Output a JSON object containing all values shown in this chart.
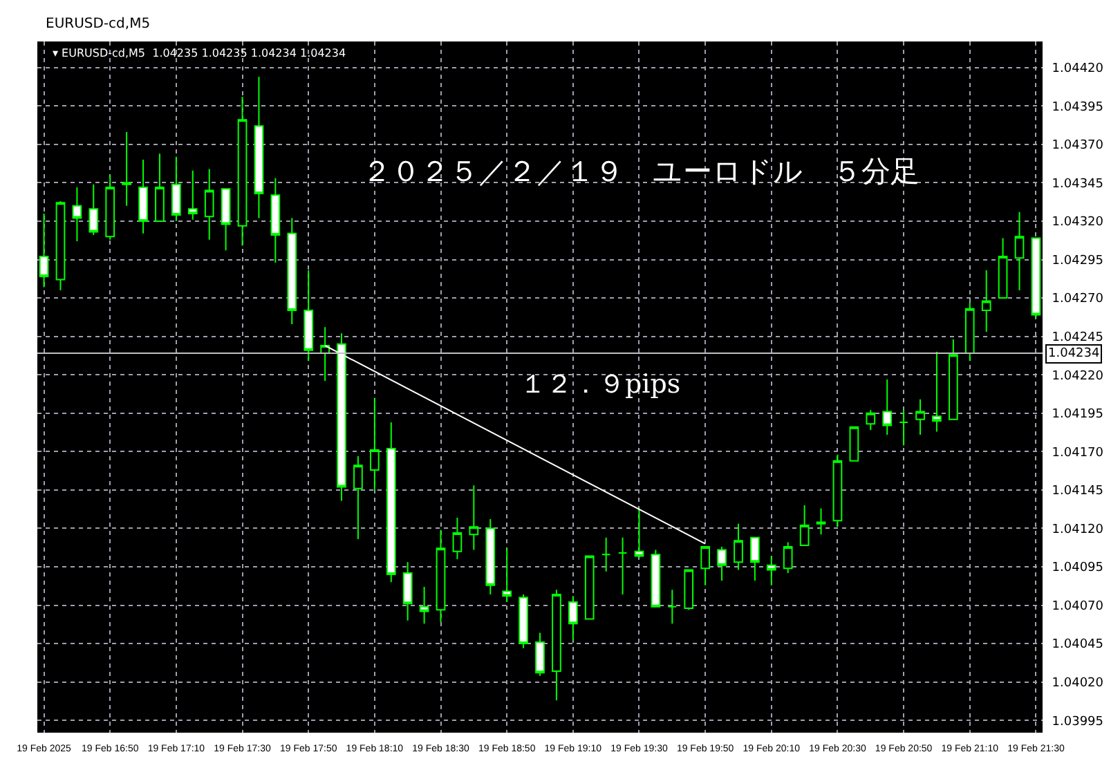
{
  "chart_data": {
    "type": "candlestick",
    "title": "EURUSD-cd,M5",
    "subtitle": "▾ EURUSD-cd,M5  1.04235 1.04235 1.04234 1.04234",
    "annotations": [
      "２０２５／２／１９　ユーロドル　５分足",
      "１２．９pips"
    ],
    "xlim": [
      "2025-02-19T16:28",
      "2025-02-19T21:32"
    ],
    "xticks": [
      {
        "value": "2025-02-19T16:30",
        "label": "19 Feb 2025"
      },
      {
        "value": "2025-02-19T16:50",
        "label": "19 Feb 16:50"
      },
      {
        "value": "2025-02-19T17:10",
        "label": "19 Feb 17:10"
      },
      {
        "value": "2025-02-19T17:30",
        "label": "19 Feb 17:30"
      },
      {
        "value": "2025-02-19T17:50",
        "label": "19 Feb 17:50"
      },
      {
        "value": "2025-02-19T18:10",
        "label": "19 Feb 18:10"
      },
      {
        "value": "2025-02-19T18:30",
        "label": "19 Feb 18:30"
      },
      {
        "value": "2025-02-19T18:50",
        "label": "19 Feb 18:50"
      },
      {
        "value": "2025-02-19T19:10",
        "label": "19 Feb 19:10"
      },
      {
        "value": "2025-02-19T19:30",
        "label": "19 Feb 19:30"
      },
      {
        "value": "2025-02-19T19:50",
        "label": "19 Feb 19:50"
      },
      {
        "value": "2025-02-19T20:10",
        "label": "19 Feb 20:10"
      },
      {
        "value": "2025-02-19T20:30",
        "label": "19 Feb 20:30"
      },
      {
        "value": "2025-02-19T20:50",
        "label": "19 Feb 20:50"
      },
      {
        "value": "2025-02-19T21:10",
        "label": "19 Feb 21:10"
      },
      {
        "value": "2025-02-19T21:30",
        "label": "19 Feb 21:30"
      }
    ],
    "ylim": [
      1.03987,
      1.04437
    ],
    "yticks": [
      {
        "value": 1.03995,
        "label": "1.03995"
      },
      {
        "value": 1.0402,
        "label": "1.04020"
      },
      {
        "value": 1.04045,
        "label": "1.04045"
      },
      {
        "value": 1.0407,
        "label": "1.04070"
      },
      {
        "value": 1.04095,
        "label": "1.04095"
      },
      {
        "value": 1.0412,
        "label": "1.04120"
      },
      {
        "value": 1.04145,
        "label": "1.04145"
      },
      {
        "value": 1.0417,
        "label": "1.04170"
      },
      {
        "value": 1.04195,
        "label": "1.04195"
      },
      {
        "value": 1.0422,
        "label": "1.04220"
      },
      {
        "value": 1.04245,
        "label": "1.04245"
      },
      {
        "value": 1.0427,
        "label": "1.04270"
      },
      {
        "value": 1.04295,
        "label": "1.04295"
      },
      {
        "value": 1.0432,
        "label": "1.04320"
      },
      {
        "value": 1.04345,
        "label": "1.04345"
      },
      {
        "value": 1.0437,
        "label": "1.04370"
      },
      {
        "value": 1.04395,
        "label": "1.04395"
      },
      {
        "value": 1.0442,
        "label": "1.04420"
      }
    ],
    "grid": true,
    "ref_lines": [
      {
        "axis": "y",
        "value": 1.04234,
        "label": "1.04234",
        "color": "#c0c0c0"
      }
    ],
    "series": [
      {
        "color": "#00ff00",
        "x": [
          "2025-02-19T16:30",
          "2025-02-19T16:35",
          "2025-02-19T16:40",
          "2025-02-19T16:45",
          "2025-02-19T16:50",
          "2025-02-19T16:55",
          "2025-02-19T17:00",
          "2025-02-19T17:05",
          "2025-02-19T17:10",
          "2025-02-19T17:15",
          "2025-02-19T17:20",
          "2025-02-19T17:25",
          "2025-02-19T17:30",
          "2025-02-19T17:35",
          "2025-02-19T17:40",
          "2025-02-19T17:45",
          "2025-02-19T17:50",
          "2025-02-19T17:55",
          "2025-02-19T18:00",
          "2025-02-19T18:05",
          "2025-02-19T18:10",
          "2025-02-19T18:15",
          "2025-02-19T18:20",
          "2025-02-19T18:25",
          "2025-02-19T18:30",
          "2025-02-19T18:35",
          "2025-02-19T18:40",
          "2025-02-19T18:45",
          "2025-02-19T18:50",
          "2025-02-19T18:55",
          "2025-02-19T19:00",
          "2025-02-19T19:05",
          "2025-02-19T19:10",
          "2025-02-19T19:15",
          "2025-02-19T19:20",
          "2025-02-19T19:25",
          "2025-02-19T19:30",
          "2025-02-19T19:35",
          "2025-02-19T19:40",
          "2025-02-19T19:45",
          "2025-02-19T19:50",
          "2025-02-19T19:55",
          "2025-02-19T20:00",
          "2025-02-19T20:05",
          "2025-02-19T20:10",
          "2025-02-19T20:15",
          "2025-02-19T20:20",
          "2025-02-19T20:25",
          "2025-02-19T20:30",
          "2025-02-19T20:35",
          "2025-02-19T20:40",
          "2025-02-19T20:45",
          "2025-02-19T20:50",
          "2025-02-19T20:55",
          "2025-02-19T21:00",
          "2025-02-19T21:05",
          "2025-02-19T21:10",
          "2025-02-19T21:15",
          "2025-02-19T21:20",
          "2025-02-19T21:25",
          "2025-02-19T21:30"
        ],
        "ohlc": [
          [
            1.04297,
            1.04325,
            1.04277,
            1.04284
          ],
          [
            1.04282,
            1.04333,
            1.04275,
            1.04332
          ],
          [
            1.0433,
            1.04342,
            1.04307,
            1.04322
          ],
          [
            1.04328,
            1.04344,
            1.04311,
            1.04313
          ],
          [
            1.0431,
            1.0435,
            1.04308,
            1.04342
          ],
          [
            1.04344,
            1.04378,
            1.0433,
            1.04345
          ],
          [
            1.04342,
            1.0436,
            1.04312,
            1.0432
          ],
          [
            1.0432,
            1.04364,
            1.0432,
            1.04342
          ],
          [
            1.04344,
            1.04362,
            1.0432,
            1.04324
          ],
          [
            1.04328,
            1.04353,
            1.04321,
            1.04325
          ],
          [
            1.04323,
            1.04354,
            1.04308,
            1.0434
          ],
          [
            1.04341,
            1.04341,
            1.04301,
            1.04318
          ],
          [
            1.04317,
            1.04401,
            1.04304,
            1.04386
          ],
          [
            1.04382,
            1.04414,
            1.04322,
            1.04338
          ],
          [
            1.04337,
            1.04348,
            1.04293,
            1.04311
          ],
          [
            1.04312,
            1.04322,
            1.04253,
            1.04262
          ],
          [
            1.04262,
            1.04288,
            1.04229,
            1.04236
          ],
          [
            1.04234,
            1.04251,
            1.04216,
            1.04239
          ],
          [
            1.0424,
            1.04247,
            1.04138,
            1.04147
          ],
          [
            1.04146,
            1.04167,
            1.04113,
            1.04161
          ],
          [
            1.04158,
            1.04205,
            1.04145,
            1.04171
          ],
          [
            1.04172,
            1.04189,
            1.04085,
            1.0409
          ],
          [
            1.04091,
            1.04098,
            1.0406,
            1.04071
          ],
          [
            1.04069,
            1.04082,
            1.04058,
            1.04066
          ],
          [
            1.04067,
            1.04119,
            1.04059,
            1.04107
          ],
          [
            1.04105,
            1.04127,
            1.041,
            1.04117
          ],
          [
            1.04116,
            1.04148,
            1.04106,
            1.04121
          ],
          [
            1.0412,
            1.04126,
            1.04077,
            1.04083
          ],
          [
            1.04079,
            1.04107,
            1.04072,
            1.04076
          ],
          [
            1.04075,
            1.04077,
            1.04042,
            1.04045
          ],
          [
            1.04046,
            1.04052,
            1.04024,
            1.04026
          ],
          [
            1.04027,
            1.0408,
            1.04008,
            1.04077
          ],
          [
            1.04072,
            1.04076,
            1.04047,
            1.04058
          ],
          [
            1.04061,
            1.04102,
            1.04061,
            1.04102
          ],
          [
            1.04103,
            1.04114,
            1.04092,
            1.04103
          ],
          [
            1.04104,
            1.04114,
            1.04077,
            1.04104
          ],
          [
            1.04105,
            1.04133,
            1.04101,
            1.04102
          ],
          [
            1.04103,
            1.04106,
            1.04069,
            1.04069
          ],
          [
            1.04069,
            1.0408,
            1.04058,
            1.04069
          ],
          [
            1.04068,
            1.04093,
            1.04067,
            1.04093
          ],
          [
            1.04094,
            1.04108,
            1.04083,
            1.04108
          ],
          [
            1.04106,
            1.04108,
            1.04086,
            1.04096
          ],
          [
            1.04098,
            1.04123,
            1.04093,
            1.04112
          ],
          [
            1.04114,
            1.04114,
            1.04086,
            1.04098
          ],
          [
            1.04096,
            1.04102,
            1.04083,
            1.04093
          ],
          [
            1.04094,
            1.04111,
            1.04091,
            1.04108
          ],
          [
            1.04109,
            1.04135,
            1.04109,
            1.04122
          ],
          [
            1.04123,
            1.04133,
            1.04116,
            1.04124
          ],
          [
            1.04125,
            1.04168,
            1.04121,
            1.04164
          ],
          [
            1.04164,
            1.04186,
            1.04164,
            1.04186
          ],
          [
            1.04188,
            1.04197,
            1.04184,
            1.04195
          ],
          [
            1.04196,
            1.04217,
            1.04181,
            1.04187
          ],
          [
            1.04189,
            1.04197,
            1.04174,
            1.04189
          ],
          [
            1.04191,
            1.04204,
            1.04181,
            1.04196
          ],
          [
            1.04193,
            1.04235,
            1.04183,
            1.0419
          ],
          [
            1.04191,
            1.04243,
            1.04191,
            1.04233
          ],
          [
            1.04234,
            1.04267,
            1.04229,
            1.04263
          ],
          [
            1.04262,
            1.04288,
            1.04248,
            1.04268
          ],
          [
            1.0427,
            1.04309,
            1.0427,
            1.04297
          ],
          [
            1.04296,
            1.04326,
            1.04275,
            1.0431
          ],
          [
            1.04309,
            1.04309,
            1.04257,
            1.04259
          ]
        ]
      },
      {
        "type": "line",
        "color": "#ffffff",
        "x": [
          "2025-02-19T17:55",
          "2025-02-19T19:50"
        ],
        "values": [
          1.04239,
          1.0411
        ]
      }
    ]
  }
}
